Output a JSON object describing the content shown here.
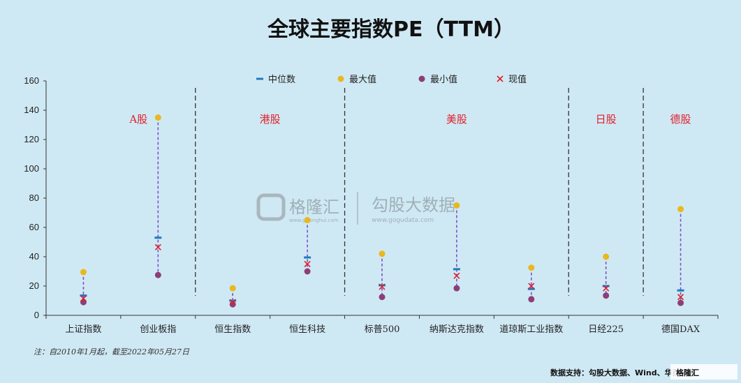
{
  "chart_data": {
    "type": "scatter",
    "title": "全球主要指数PE（TTM）",
    "categories": [
      "上证指数",
      "创业板指",
      "恒生指数",
      "恒生科技",
      "标普500",
      "纳斯达克指数",
      "道琼斯工业指数",
      "日经225",
      "德国DAX"
    ],
    "series": [
      {
        "name": "中位数",
        "values": [
          13.5,
          53,
          10,
          39.5,
          20.5,
          31.5,
          18,
          20,
          17
        ],
        "color": "#1e7bbf",
        "marker": "dash"
      },
      {
        "name": "最大值",
        "values": [
          29.5,
          135,
          18.5,
          65,
          42,
          75,
          32.5,
          40,
          72.5
        ],
        "color": "#e8b81e",
        "marker": "circle"
      },
      {
        "name": "最小值",
        "values": [
          9,
          27.5,
          7.5,
          30,
          12.5,
          18.5,
          11,
          13.5,
          8.5
        ],
        "color": "#8b3f76",
        "marker": "circle"
      },
      {
        "name": "现值",
        "values": [
          11.5,
          46.5,
          9,
          35,
          19.5,
          27,
          20,
          18.5,
          12.5
        ],
        "color": "#e0202a",
        "marker": "x"
      }
    ],
    "yticks": [
      0,
      20,
      40,
      60,
      80,
      100,
      120,
      140,
      160
    ],
    "ylim": [
      0,
      160
    ],
    "legend": "top-center",
    "regions": [
      {
        "label": "A股",
        "start": 0,
        "end": 1
      },
      {
        "label": "港股",
        "start": 2,
        "end": 3
      },
      {
        "label": "美股",
        "start": 4,
        "end": 6
      },
      {
        "label": "日股",
        "start": 7,
        "end": 7
      },
      {
        "label": "德股",
        "start": 8,
        "end": 8
      }
    ],
    "separators_after": [
      1,
      3,
      6,
      7
    ]
  },
  "footnote": "注：自2010年1月起，截至2022年05月27日",
  "source": "数据支持：勾股大数据、Wind、华西证券",
  "watermark": {
    "brand": "格隆汇",
    "brand_url": "www.gelonghui.com",
    "data_brand": "勾股大数据",
    "data_url": "www.gogudata.com",
    "corner": "格隆汇"
  },
  "colors": {
    "background": "#cfe9f4",
    "range_line": "#7b52c8",
    "separator": "#333333"
  }
}
